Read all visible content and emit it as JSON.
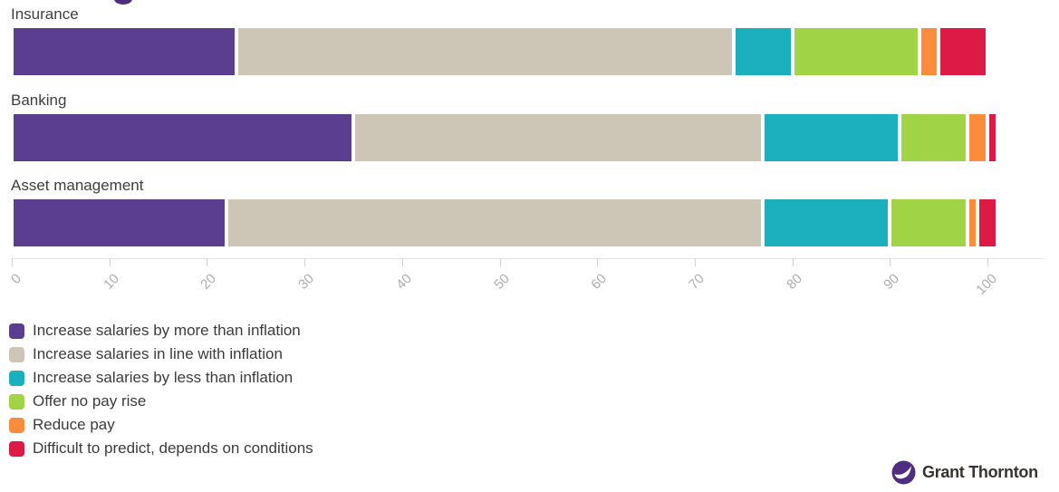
{
  "chart_data": {
    "type": "bar",
    "orientation": "horizontal",
    "stacked": true,
    "categories": [
      "Insurance",
      "Banking",
      "Asset management"
    ],
    "series": [
      {
        "name": "Increase salaries by more than inflation",
        "color": "#5b3e90",
        "values": [
          23,
          35,
          22
        ]
      },
      {
        "name": "Increase salaries in line with inflation",
        "color": "#cdc5b5",
        "values": [
          51,
          42,
          55
        ]
      },
      {
        "name": "Increase salaries by less than inflation",
        "color": "#1cafbd",
        "values": [
          6,
          14,
          13
        ]
      },
      {
        "name": "Offer no pay rise",
        "color": "#a0d346",
        "values": [
          13,
          7,
          8
        ]
      },
      {
        "name": "Reduce pay",
        "color": "#fa8c3c",
        "values": [
          2,
          2,
          1
        ]
      },
      {
        "name": "Difficult to predict, depends on conditions",
        "color": "#dd1a45",
        "values": [
          5,
          1,
          2
        ]
      }
    ],
    "x_axis": {
      "min": 0,
      "max": 100,
      "ticks": [
        0,
        10,
        20,
        30,
        40,
        50,
        60,
        70,
        80,
        90,
        100
      ]
    },
    "legend_position": "bottom-left",
    "grid": false
  },
  "footer": {
    "brand": "Grant Thornton",
    "brand_color": "#4F2D7F"
  }
}
